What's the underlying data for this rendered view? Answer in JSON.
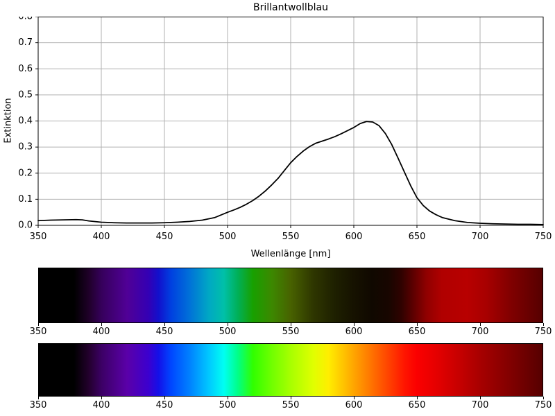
{
  "figure": {
    "background": "#ffffff",
    "grid_color": "#b0b0b0",
    "axis_color": "#000000",
    "curve_color": "#000000"
  },
  "chart_data": [
    {
      "type": "line",
      "title": "Brillantwollblau",
      "xlabel": "Wellenlänge [nm]",
      "ylabel": "Extinktion",
      "xlim": [
        350,
        750
      ],
      "ylim": [
        0.0,
        0.8
      ],
      "grid": true,
      "grid_color": "#b0b0b0",
      "line_color": "#000000",
      "xticks": [
        350,
        400,
        450,
        500,
        550,
        600,
        650,
        700,
        750
      ],
      "xtick_labels": [
        "350",
        "400",
        "450",
        "500",
        "550",
        "600",
        "650",
        "700",
        "750"
      ],
      "yticks": [
        0.0,
        0.1,
        0.2,
        0.3,
        0.4,
        0.5,
        0.6,
        0.7,
        0.8
      ],
      "ytick_labels": [
        "0.0",
        "0.1",
        "0.2",
        "0.3",
        "0.4",
        "0.5",
        "0.6",
        "0.7",
        "0.8"
      ],
      "series": [
        {
          "name": "Extinktion",
          "x": [
            350,
            360,
            370,
            380,
            385,
            390,
            400,
            410,
            420,
            430,
            440,
            450,
            460,
            470,
            480,
            490,
            500,
            505,
            510,
            515,
            520,
            525,
            530,
            535,
            540,
            545,
            550,
            555,
            560,
            565,
            570,
            575,
            580,
            585,
            590,
            595,
            600,
            605,
            610,
            615,
            620,
            625,
            630,
            635,
            640,
            645,
            650,
            655,
            660,
            665,
            670,
            680,
            690,
            700,
            710,
            720,
            730,
            740,
            750
          ],
          "y": [
            0.018,
            0.02,
            0.021,
            0.022,
            0.021,
            0.017,
            0.012,
            0.01,
            0.009,
            0.009,
            0.009,
            0.01,
            0.012,
            0.015,
            0.02,
            0.03,
            0.05,
            0.059,
            0.069,
            0.081,
            0.095,
            0.112,
            0.132,
            0.155,
            0.18,
            0.21,
            0.24,
            0.264,
            0.285,
            0.302,
            0.315,
            0.323,
            0.331,
            0.34,
            0.351,
            0.363,
            0.375,
            0.39,
            0.398,
            0.396,
            0.382,
            0.352,
            0.31,
            0.258,
            0.205,
            0.152,
            0.106,
            0.076,
            0.055,
            0.041,
            0.03,
            0.018,
            0.011,
            0.008,
            0.006,
            0.005,
            0.004,
            0.004,
            0.003
          ]
        }
      ]
    },
    {
      "type": "heatmap",
      "xlim": [
        350,
        750
      ],
      "xticks": [
        350,
        400,
        450,
        500,
        550,
        600,
        650,
        700,
        750
      ],
      "xtick_labels": [
        "350",
        "400",
        "450",
        "500",
        "550",
        "600",
        "650",
        "700",
        "750"
      ],
      "stops": [
        {
          "nm": 350,
          "color": "#000000"
        },
        {
          "nm": 378,
          "color": "#000000"
        },
        {
          "nm": 390,
          "color": "#20002a"
        },
        {
          "nm": 400,
          "color": "#36005c"
        },
        {
          "nm": 420,
          "color": "#500096"
        },
        {
          "nm": 437,
          "color": "#3400b4"
        },
        {
          "nm": 445,
          "color": "#1210cc"
        },
        {
          "nm": 455,
          "color": "#0040e0"
        },
        {
          "nm": 470,
          "color": "#0072d8"
        },
        {
          "nm": 485,
          "color": "#00a8c4"
        },
        {
          "nm": 497,
          "color": "#00c0a8"
        },
        {
          "nm": 508,
          "color": "#00b058"
        },
        {
          "nm": 520,
          "color": "#18a000"
        },
        {
          "nm": 535,
          "color": "#3c8800"
        },
        {
          "nm": 550,
          "color": "#486200"
        },
        {
          "nm": 568,
          "color": "#2e3600"
        },
        {
          "nm": 585,
          "color": "#1e2000"
        },
        {
          "nm": 600,
          "color": "#161200"
        },
        {
          "nm": 615,
          "color": "#100800"
        },
        {
          "nm": 628,
          "color": "#180600"
        },
        {
          "nm": 638,
          "color": "#300200"
        },
        {
          "nm": 648,
          "color": "#600000"
        },
        {
          "nm": 658,
          "color": "#900000"
        },
        {
          "nm": 670,
          "color": "#b00000"
        },
        {
          "nm": 690,
          "color": "#b80000"
        },
        {
          "nm": 705,
          "color": "#a80000"
        },
        {
          "nm": 725,
          "color": "#800000"
        },
        {
          "nm": 750,
          "color": "#560000"
        }
      ]
    },
    {
      "type": "heatmap",
      "xlim": [
        350,
        750
      ],
      "xticks": [
        350,
        400,
        450,
        500,
        550,
        600,
        650,
        700,
        750
      ],
      "xtick_labels": [
        "350",
        "400",
        "450",
        "500",
        "550",
        "600",
        "650",
        "700",
        "750"
      ],
      "stops": [
        {
          "nm": 350,
          "color": "#000000"
        },
        {
          "nm": 378,
          "color": "#000000"
        },
        {
          "nm": 390,
          "color": "#24002e"
        },
        {
          "nm": 400,
          "color": "#3c0066"
        },
        {
          "nm": 420,
          "color": "#5a00a8"
        },
        {
          "nm": 437,
          "color": "#3c00cf"
        },
        {
          "nm": 445,
          "color": "#1410e8"
        },
        {
          "nm": 455,
          "color": "#0046ff"
        },
        {
          "nm": 470,
          "color": "#0082ff"
        },
        {
          "nm": 485,
          "color": "#00c8ff"
        },
        {
          "nm": 497,
          "color": "#00fff2"
        },
        {
          "nm": 508,
          "color": "#00ff88"
        },
        {
          "nm": 520,
          "color": "#30ff00"
        },
        {
          "nm": 535,
          "color": "#70ff00"
        },
        {
          "nm": 550,
          "color": "#a8ff00"
        },
        {
          "nm": 568,
          "color": "#e0ff00"
        },
        {
          "nm": 580,
          "color": "#ffee00"
        },
        {
          "nm": 600,
          "color": "#ffa600"
        },
        {
          "nm": 620,
          "color": "#ff5e00"
        },
        {
          "nm": 640,
          "color": "#ff1600"
        },
        {
          "nm": 650,
          "color": "#fb0000"
        },
        {
          "nm": 665,
          "color": "#e60000"
        },
        {
          "nm": 685,
          "color": "#c40000"
        },
        {
          "nm": 700,
          "color": "#a80000"
        },
        {
          "nm": 725,
          "color": "#800000"
        },
        {
          "nm": 750,
          "color": "#560000"
        }
      ]
    }
  ]
}
